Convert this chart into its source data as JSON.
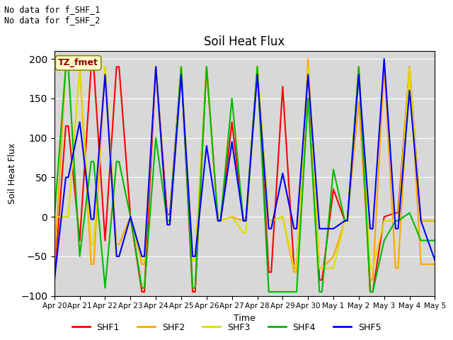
{
  "title": "Soil Heat Flux",
  "ylabel": "Soil Heat Flux",
  "xlabel": "Time",
  "annotation_line1": "No data for f_SHF_1",
  "annotation_line2": "No data for f_SHF_2",
  "box_label": "TZ_fmet",
  "ylim": [
    -100,
    210
  ],
  "yticks": [
    -100,
    -50,
    0,
    50,
    100,
    150,
    200
  ],
  "colors": {
    "SHF1": "#ff0000",
    "SHF2": "#ffa500",
    "SHF3": "#dddd00",
    "SHF4": "#00bb00",
    "SHF5": "#0000ff"
  },
  "bg_color": "#d8d8d8",
  "tick_dates": [
    "Apr 20",
    "Apr 21",
    "Apr 22",
    "Apr 23",
    "Apr 24",
    "Apr 25",
    "Apr 26",
    "Apr 27",
    "Apr 28",
    "Apr 29",
    "Apr 30",
    "May 1",
    "May 2",
    "May 3",
    "May 4",
    "May 5"
  ],
  "shf1_x": [
    0,
    0.45,
    0.55,
    1.0,
    1.45,
    1.55,
    2.0,
    2.45,
    2.55,
    3.0,
    3.45,
    3.55,
    4.0,
    4.45,
    4.55,
    5.0,
    5.45,
    5.55,
    6.0,
    6.45,
    6.55,
    7.0,
    7.45,
    7.55,
    8.0,
    8.45,
    8.55,
    9.0,
    9.45,
    9.55,
    10.0,
    10.45,
    10.55,
    11.0,
    11.45,
    11.55,
    12.0,
    12.45,
    12.55,
    13.0,
    13.45,
    13.55,
    14.0,
    14.45,
    15.0
  ],
  "shf1_y": [
    -80,
    115,
    115,
    -30,
    190,
    190,
    -30,
    190,
    190,
    0,
    -95,
    -95,
    190,
    3,
    3,
    190,
    -95,
    -95,
    190,
    -5,
    -5,
    120,
    -5,
    -5,
    190,
    -70,
    -70,
    165,
    -65,
    -65,
    190,
    -80,
    -80,
    35,
    -5,
    -5,
    190,
    -95,
    -95,
    0,
    5,
    5,
    190,
    -5,
    -5
  ],
  "shf2_x": [
    0,
    0.45,
    0.55,
    1.0,
    1.45,
    1.55,
    2.0,
    2.45,
    2.55,
    3.0,
    3.45,
    3.55,
    4.0,
    4.45,
    4.55,
    5.0,
    5.45,
    5.55,
    6.0,
    6.45,
    6.55,
    7.0,
    7.45,
    7.55,
    8.0,
    8.45,
    8.55,
    9.0,
    9.45,
    9.55,
    10.0,
    10.45,
    10.55,
    11.0,
    11.45,
    11.55,
    12.0,
    12.45,
    12.55,
    13.0,
    13.45,
    13.55,
    14.0,
    14.45,
    15.0
  ],
  "shf2_y": [
    -65,
    190,
    190,
    190,
    -60,
    -60,
    190,
    -35,
    -35,
    0,
    -60,
    -60,
    190,
    -10,
    -10,
    190,
    -55,
    -55,
    190,
    -5,
    -5,
    0,
    -5,
    -5,
    190,
    -5,
    -5,
    0,
    -70,
    -70,
    200,
    -65,
    -65,
    -50,
    -5,
    -5,
    145,
    -80,
    -80,
    190,
    -65,
    -65,
    190,
    -60,
    -60
  ],
  "shf3_x": [
    0,
    0.45,
    0.55,
    1.0,
    1.45,
    1.55,
    2.0,
    2.45,
    2.55,
    3.0,
    3.45,
    3.55,
    4.0,
    4.45,
    4.55,
    5.0,
    5.45,
    5.55,
    6.0,
    6.45,
    6.55,
    7.0,
    7.45,
    7.55,
    8.0,
    8.45,
    8.55,
    9.0,
    9.45,
    9.55,
    10.0,
    10.45,
    10.55,
    11.0,
    11.45,
    11.55,
    12.0,
    12.45,
    12.55,
    13.0,
    13.45,
    13.55,
    14.0,
    14.45,
    15.0
  ],
  "shf3_y": [
    0,
    0,
    0,
    190,
    -35,
    -35,
    190,
    -50,
    -50,
    0,
    -55,
    -55,
    190,
    -10,
    -10,
    190,
    -55,
    -55,
    190,
    -5,
    -5,
    0,
    -20,
    -20,
    190,
    -5,
    -5,
    0,
    -65,
    -65,
    190,
    -65,
    -65,
    -65,
    -5,
    -5,
    190,
    -65,
    -65,
    -5,
    -5,
    -5,
    190,
    -5,
    -5
  ],
  "shf4_x": [
    0,
    0.45,
    0.55,
    1.0,
    1.45,
    1.55,
    2.0,
    2.45,
    2.55,
    3.0,
    3.45,
    3.55,
    4.0,
    4.45,
    4.55,
    5.0,
    5.45,
    5.55,
    6.0,
    6.45,
    6.55,
    7.0,
    7.45,
    7.55,
    8.0,
    8.45,
    8.55,
    9.0,
    9.45,
    9.55,
    10.0,
    10.45,
    10.55,
    11.0,
    11.45,
    11.55,
    12.0,
    12.45,
    12.55,
    13.0,
    13.45,
    13.55,
    14.0,
    14.45,
    15.0
  ],
  "shf4_y": [
    0,
    190,
    190,
    -50,
    70,
    70,
    -90,
    70,
    70,
    0,
    -90,
    -90,
    100,
    -5,
    -5,
    190,
    -90,
    -90,
    190,
    -5,
    -5,
    150,
    -5,
    -5,
    190,
    -95,
    -95,
    -95,
    -95,
    -95,
    150,
    -95,
    -95,
    60,
    -5,
    -5,
    190,
    -95,
    -95,
    -30,
    -5,
    -5,
    5,
    -30,
    -30
  ],
  "shf5_x": [
    0,
    0.45,
    0.55,
    1.0,
    1.45,
    1.55,
    2.0,
    2.45,
    2.55,
    3.0,
    3.45,
    3.55,
    4.0,
    4.45,
    4.55,
    5.0,
    5.45,
    5.55,
    6.0,
    6.45,
    6.55,
    7.0,
    7.45,
    7.55,
    8.0,
    8.45,
    8.55,
    9.0,
    9.45,
    9.55,
    10.0,
    10.45,
    10.55,
    11.0,
    11.45,
    11.55,
    12.0,
    12.45,
    12.55,
    13.0,
    13.45,
    13.55,
    14.0,
    14.45,
    15.0
  ],
  "shf5_y": [
    -80,
    50,
    50,
    120,
    -3,
    -3,
    180,
    -50,
    -50,
    0,
    -50,
    -50,
    190,
    -10,
    -10,
    180,
    -50,
    -50,
    90,
    -5,
    -5,
    95,
    -5,
    -5,
    180,
    -15,
    -15,
    55,
    -15,
    -15,
    180,
    -15,
    -15,
    -15,
    -5,
    -5,
    180,
    -15,
    -15,
    200,
    -15,
    -15,
    160,
    -5,
    -55
  ]
}
